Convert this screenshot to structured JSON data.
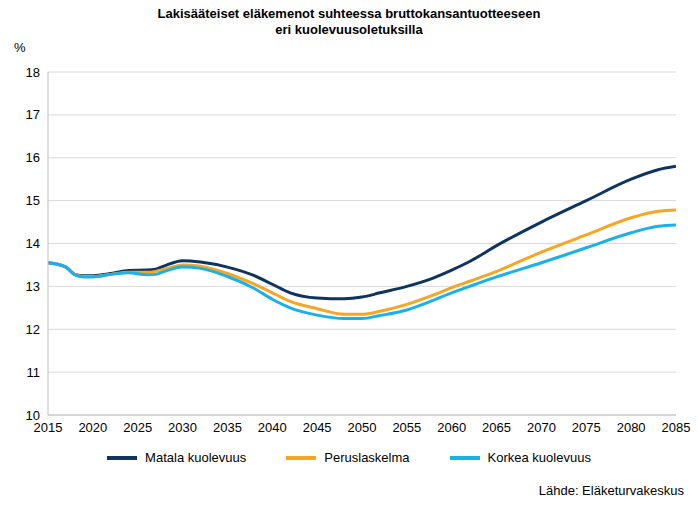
{
  "chart_data": {
    "type": "line",
    "title": "Lakisääteiset eläkemenot suhteessa bruttokansantuotteeseen\neri kuolevuusoletuksilla",
    "y_label": "%",
    "source": "Lähde: Eläketurvakeskus",
    "x": [
      2015,
      2017,
      2018,
      2019,
      2020,
      2022,
      2024,
      2026,
      2027,
      2028,
      2030,
      2032,
      2035,
      2038,
      2040,
      2042,
      2045,
      2048,
      2050,
      2052,
      2055,
      2058,
      2060,
      2062,
      2065,
      2070,
      2075,
      2080,
      2083,
      2085
    ],
    "series": [
      {
        "name": "Matala kuolevuus",
        "color": "#0f3460",
        "values": [
          13.55,
          13.45,
          13.28,
          13.25,
          13.25,
          13.3,
          13.37,
          13.38,
          13.4,
          13.48,
          13.6,
          13.57,
          13.45,
          13.25,
          13.05,
          12.85,
          12.73,
          12.71,
          12.75,
          12.85,
          13.0,
          13.2,
          13.38,
          13.58,
          13.95,
          14.5,
          15.0,
          15.5,
          15.72,
          15.8
        ]
      },
      {
        "name": "Peruslaskelma",
        "color": "#f5a623",
        "values": [
          13.55,
          13.45,
          13.28,
          13.23,
          13.23,
          13.28,
          13.33,
          13.33,
          13.35,
          13.4,
          13.5,
          13.47,
          13.3,
          13.05,
          12.85,
          12.65,
          12.48,
          12.35,
          12.35,
          12.42,
          12.58,
          12.8,
          12.97,
          13.12,
          13.35,
          13.8,
          14.2,
          14.6,
          14.75,
          14.78
        ]
      },
      {
        "name": "Korkea kuolevuus",
        "color": "#1ab0e8",
        "values": [
          13.55,
          13.45,
          13.27,
          13.22,
          13.22,
          13.28,
          13.32,
          13.27,
          13.28,
          13.35,
          13.45,
          13.42,
          13.23,
          12.95,
          12.7,
          12.5,
          12.33,
          12.25,
          12.25,
          12.32,
          12.45,
          12.68,
          12.85,
          13.0,
          13.22,
          13.55,
          13.9,
          14.25,
          14.4,
          14.43
        ]
      }
    ],
    "xlim": [
      2015,
      2085
    ],
    "xticks": [
      2015,
      2020,
      2025,
      2030,
      2035,
      2040,
      2045,
      2050,
      2055,
      2060,
      2065,
      2070,
      2075,
      2080,
      2085
    ],
    "ylim": [
      10,
      18
    ],
    "yticks": [
      10,
      11,
      12,
      13,
      14,
      15,
      16,
      17,
      18
    ],
    "grid": true,
    "legend": "bottom"
  }
}
